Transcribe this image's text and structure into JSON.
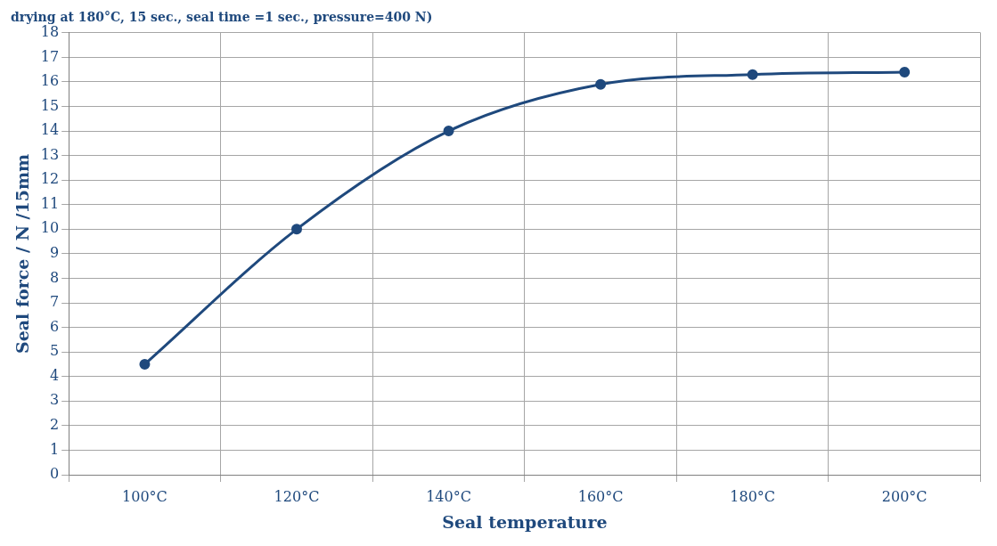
{
  "chart_data": {
    "type": "line",
    "title": "drying at 180°C, 15 sec., seal time =1 sec., pressure=400 N)",
    "xlabel": "Seal temperature",
    "ylabel": "Seal force / N /15mm",
    "categories": [
      "100°C",
      "120°C",
      "140°C",
      "160°C",
      "180°C",
      "200°C"
    ],
    "series": [
      {
        "color": "#1f497d",
        "values": [
          4.5,
          10,
          14,
          15.9,
          16.3,
          16.4
        ]
      }
    ],
    "ylim": [
      0,
      18
    ],
    "yticks": [
      0,
      1,
      2,
      3,
      4,
      5,
      6,
      7,
      8,
      9,
      10,
      11,
      12,
      13,
      14,
      15,
      16,
      17,
      18
    ],
    "grid": true,
    "marker": "circle",
    "line_style": "solid",
    "legend": false
  }
}
